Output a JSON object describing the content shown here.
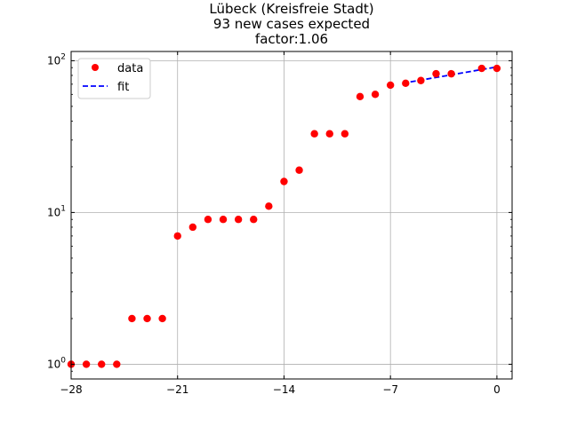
{
  "chart_data": {
    "type": "scatter",
    "title_lines": [
      "Lübeck (Kreisfreie Stadt)",
      "93 new cases expected",
      "factor:1.06"
    ],
    "xlabel": "",
    "ylabel": "",
    "xlim": [
      -28,
      1
    ],
    "ylim": [
      0.8,
      115
    ],
    "yscale": "log",
    "grid": true,
    "legend_position": "top-left",
    "x_ticks": [
      -28,
      -21,
      -14,
      -7,
      0
    ],
    "x_tick_labels": [
      "−28",
      "−21",
      "−14",
      "−7",
      "0"
    ],
    "y_ticks": [
      1,
      10,
      100
    ],
    "y_tick_labels": [
      {
        "base": "10",
        "exp": "0"
      },
      {
        "base": "10",
        "exp": "1"
      },
      {
        "base": "10",
        "exp": "2"
      }
    ],
    "series": [
      {
        "name": "data",
        "style": "markers",
        "color": "#ff0000",
        "x": [
          -28,
          -27,
          -26,
          -25,
          -24,
          -23,
          -22,
          -21,
          -20,
          -19,
          -18,
          -17,
          -16,
          -15,
          -14,
          -13,
          -12,
          -11,
          -10,
          -9,
          -8,
          -7,
          -6,
          -5,
          -4,
          -3,
          -1,
          0
        ],
        "y": [
          1,
          1,
          1,
          1,
          2,
          2,
          2,
          7,
          8,
          9,
          9,
          9,
          9,
          11,
          16,
          19,
          33,
          33,
          33,
          58,
          60,
          69,
          71,
          74,
          82,
          82,
          89,
          89
        ]
      },
      {
        "name": "fit",
        "style": "dashed-line",
        "color": "#0000ff",
        "x": [
          -6.2,
          0
        ],
        "y": [
          71,
          91
        ]
      }
    ]
  }
}
